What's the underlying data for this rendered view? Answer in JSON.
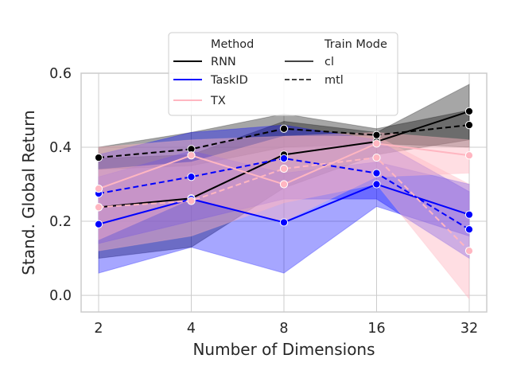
{
  "chart_data": {
    "type": "line",
    "xlabel": "Number of Dimensions",
    "ylabel": "Stand. Global Return",
    "x": [
      2,
      4,
      8,
      16,
      32
    ],
    "x_tick_labels": [
      "2",
      "4",
      "8",
      "16",
      "32"
    ],
    "x_scale": "log2",
    "ylim": [
      -0.045,
      0.6
    ],
    "y_ticks": [
      0.0,
      0.2,
      0.4,
      0.6
    ],
    "y_tick_labels": [
      "0.0",
      "0.2",
      "0.4",
      "0.6"
    ],
    "grid": true,
    "legend_placement": "top-center",
    "legend": {
      "method_title": "Method",
      "mode_title": "Train Mode",
      "methods": [
        {
          "name": "RNN",
          "color": "#000000"
        },
        {
          "name": "TaskID",
          "color": "#0000ff"
        },
        {
          "name": "TX",
          "color": "#ffb6c1"
        }
      ],
      "modes": [
        {
          "name": "cl",
          "dash": "solid"
        },
        {
          "name": "mtl",
          "dash": "dashed"
        }
      ]
    },
    "series": [
      {
        "method": "RNN",
        "mode": "cl",
        "color": "#000000",
        "values": [
          0.238,
          0.262,
          0.38,
          0.415,
          0.497
        ],
        "lower": [
          0.1,
          0.13,
          0.29,
          0.38,
          0.42
        ],
        "upper": [
          0.37,
          0.38,
          0.47,
          0.44,
          0.57
        ]
      },
      {
        "method": "RNN",
        "mode": "mtl",
        "color": "#000000",
        "values": [
          0.372,
          0.395,
          0.45,
          0.433,
          0.46
        ],
        "lower": [
          0.34,
          0.35,
          0.4,
          0.41,
          0.4
        ],
        "upper": [
          0.4,
          0.44,
          0.49,
          0.45,
          0.5
        ]
      },
      {
        "method": "TaskID",
        "mode": "cl",
        "color": "#0000ff",
        "values": [
          0.192,
          0.26,
          0.197,
          0.3,
          0.218
        ],
        "lower": [
          0.06,
          0.13,
          0.06,
          0.24,
          0.16
        ],
        "upper": [
          0.32,
          0.39,
          0.33,
          0.36,
          0.3
        ]
      },
      {
        "method": "TaskID",
        "mode": "mtl",
        "color": "#0000ff",
        "values": [
          0.275,
          0.32,
          0.37,
          0.33,
          0.178
        ],
        "lower": [
          0.14,
          0.2,
          0.26,
          0.26,
          0.1
        ],
        "upper": [
          0.38,
          0.44,
          0.46,
          0.42,
          0.28
        ]
      },
      {
        "method": "TX",
        "mode": "cl",
        "color": "#ffb6c1",
        "values": [
          0.288,
          0.378,
          0.3,
          0.41,
          0.378
        ],
        "lower": [
          0.15,
          0.26,
          0.2,
          0.32,
          0.33
        ],
        "upper": [
          0.4,
          0.42,
          0.43,
          0.44,
          0.42
        ]
      },
      {
        "method": "TX",
        "mode": "mtl",
        "color": "#ffb6c1",
        "values": [
          0.238,
          0.255,
          0.342,
          0.372,
          0.12
        ],
        "lower": [
          0.12,
          0.16,
          0.25,
          0.3,
          -0.01
        ],
        "upper": [
          0.34,
          0.36,
          0.43,
          0.43,
          0.3
        ]
      }
    ]
  }
}
